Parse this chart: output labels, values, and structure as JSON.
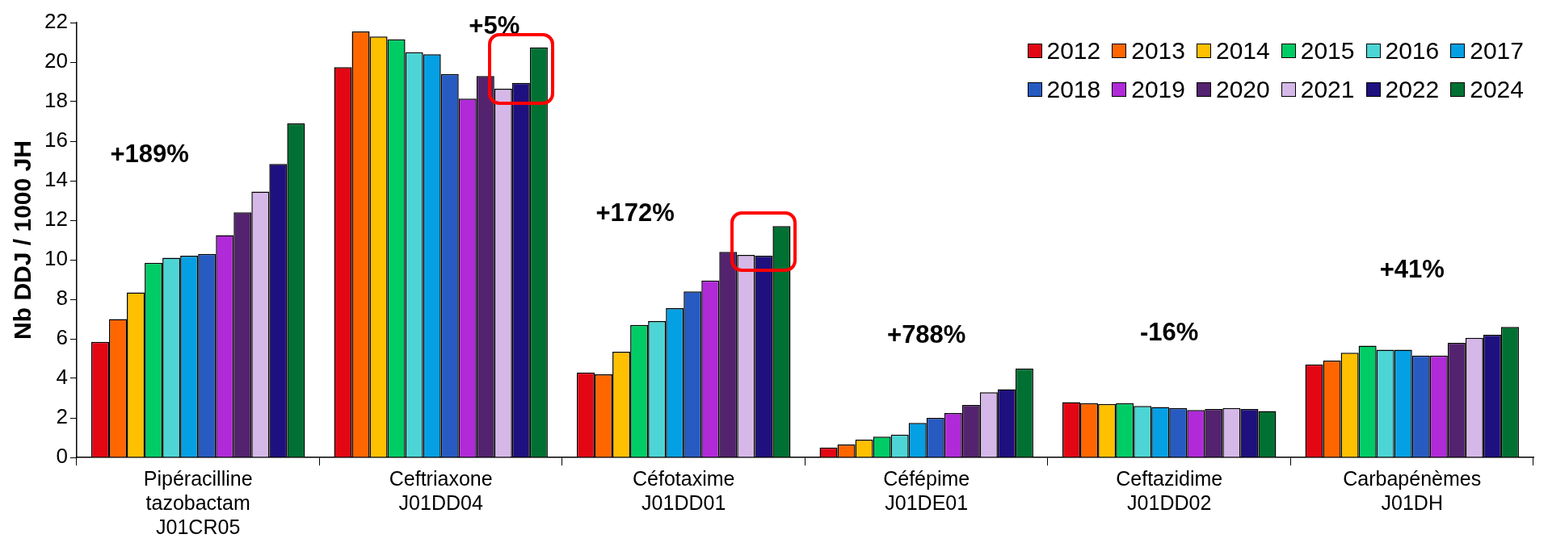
{
  "chart_data": {
    "type": "bar",
    "ylabel": "Nb DDJ / 1000 JH",
    "categories": [
      "Pipéracilline\ntazobactam\nJ01CR05",
      "Ceftriaxone\nJ01DD04",
      "Céfotaxime\nJ01DD01",
      "Céfépime\nJ01DE01",
      "Ceftazidime\nJ01DD02",
      "Carbapénèmes\nJ01DH"
    ],
    "series": [
      {
        "name": "2012",
        "color": "#e30613",
        "values": [
          5.85,
          19.75,
          4.3,
          0.5,
          2.8,
          4.7
        ]
      },
      {
        "name": "2013",
        "color": "#ff6600",
        "values": [
          7.0,
          21.55,
          4.2,
          0.65,
          2.75,
          4.9
        ]
      },
      {
        "name": "2014",
        "color": "#ffc000",
        "values": [
          8.35,
          21.3,
          5.35,
          0.9,
          2.7,
          5.3
        ]
      },
      {
        "name": "2015",
        "color": "#00cc66",
        "values": [
          9.85,
          21.15,
          6.7,
          1.05,
          2.75,
          5.65
        ]
      },
      {
        "name": "2016",
        "color": "#4dd5d5",
        "values": [
          10.1,
          20.5,
          6.9,
          1.15,
          2.6,
          5.45
        ]
      },
      {
        "name": "2017",
        "color": "#05a0e3",
        "values": [
          10.2,
          20.4,
          7.55,
          1.75,
          2.55,
          5.45
        ]
      },
      {
        "name": "2018",
        "color": "#275bc2",
        "values": [
          10.3,
          19.4,
          8.4,
          2.0,
          2.5,
          5.15
        ]
      },
      {
        "name": "2019",
        "color": "#b02ad8",
        "values": [
          11.25,
          18.15,
          8.95,
          2.25,
          2.4,
          5.15
        ]
      },
      {
        "name": "2020",
        "color": "#54236f",
        "values": [
          12.4,
          19.3,
          10.4,
          2.65,
          2.45,
          5.8
        ]
      },
      {
        "name": "2021",
        "color": "#d5b8e8",
        "values": [
          13.45,
          18.65,
          10.25,
          3.3,
          2.5,
          6.05
        ]
      },
      {
        "name": "2022",
        "color": "#1f1080",
        "values": [
          14.85,
          18.95,
          10.2,
          3.45,
          2.45,
          6.2
        ]
      },
      {
        "name": "2024",
        "color": "#007133",
        "values": [
          16.9,
          20.75,
          11.7,
          4.5,
          2.35,
          6.6
        ]
      }
    ],
    "ylim": [
      0,
      22
    ],
    "yticks": [
      0,
      2,
      4,
      6,
      8,
      10,
      12,
      14,
      16,
      18,
      20,
      22
    ],
    "grid": false,
    "legend": "top right",
    "annotations": [
      "+189%",
      "+5%",
      "+172%",
      "+788%",
      "-16%",
      "+41%"
    ]
  }
}
